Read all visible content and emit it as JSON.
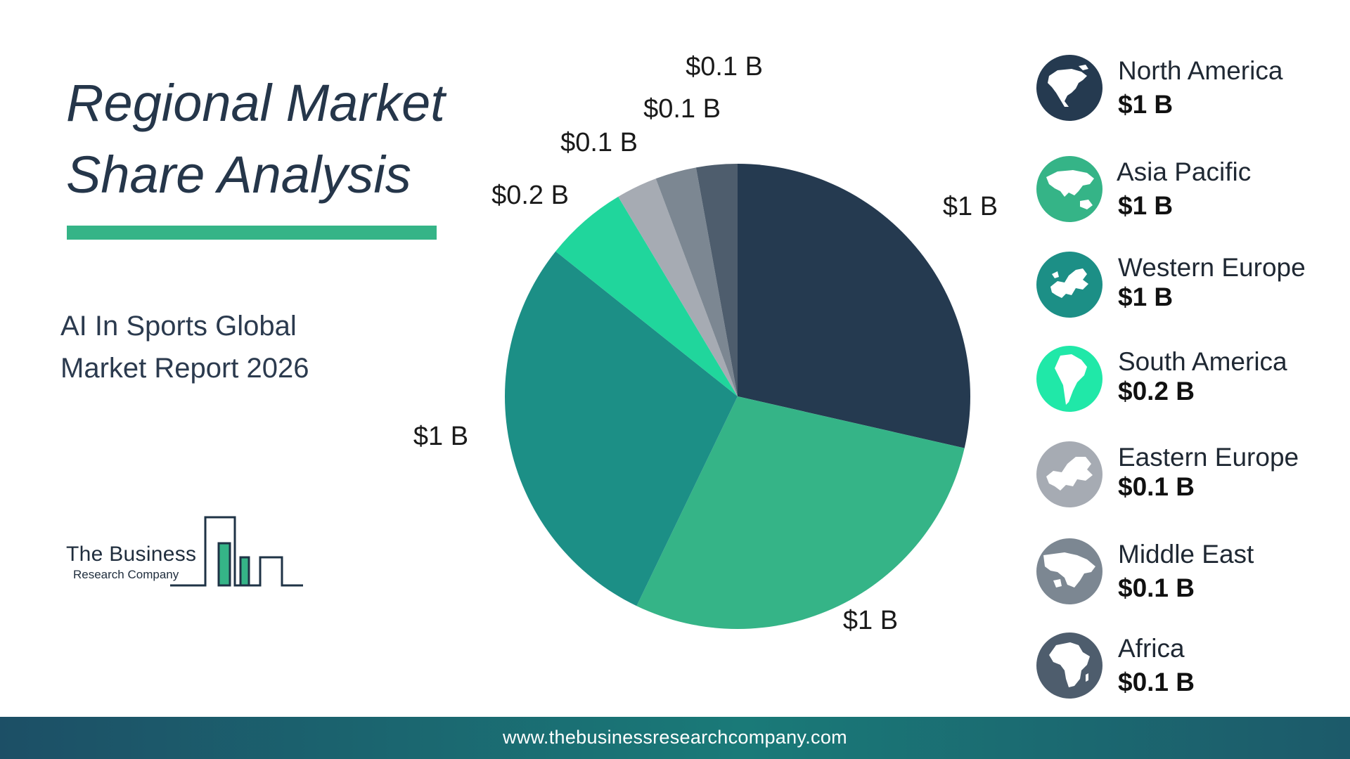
{
  "header": {
    "title_line1": "Regional Market",
    "title_line2": "Share Analysis",
    "subtitle_line1": "AI In Sports Global",
    "subtitle_line2": "Market Report 2026"
  },
  "logo": {
    "line1": "The Business",
    "line2": "Research Company"
  },
  "footer": {
    "url": "www.thebusinessresearchcompany.com"
  },
  "chart_data": {
    "type": "pie",
    "title": "Regional Market Share Analysis",
    "unit": "$ B",
    "slices": [
      {
        "name": "North America",
        "value": 1,
        "label": "$1 B",
        "color": "#253a50"
      },
      {
        "name": "Asia Pacific",
        "value": 1,
        "label": "$1 B",
        "color": "#35b487"
      },
      {
        "name": "Western Europe",
        "value": 1,
        "label": "$1 B",
        "color": "#1c8f86"
      },
      {
        "name": "South America",
        "value": 0.2,
        "label": "$0.2 B",
        "color": "#20d69c"
      },
      {
        "name": "Eastern Europe",
        "value": 0.1,
        "label": "$0.1 B",
        "color": "#a6abb3"
      },
      {
        "name": "Middle East",
        "value": 0.1,
        "label": "$0.1 B",
        "color": "#7c8792"
      },
      {
        "name": "Africa",
        "value": 0.1,
        "label": "$0.1 B",
        "color": "#4e5d6d"
      }
    ],
    "legend_placement": "right"
  },
  "legend": {
    "items": [
      {
        "name": "North America",
        "value": "$1 B",
        "icon": "globe-north-america-icon",
        "color": "#253a50"
      },
      {
        "name": "Asia Pacific",
        "value": "$1 B",
        "icon": "globe-asia-pacific-icon",
        "color": "#35b487"
      },
      {
        "name": "Western Europe",
        "value": "$1 B",
        "icon": "globe-western-europe-icon",
        "color": "#1c8f86"
      },
      {
        "name": "South America",
        "value": "$0.2 B",
        "icon": "globe-south-america-icon",
        "color": "#20e8a8"
      },
      {
        "name": "Eastern Europe",
        "value": "$0.1 B",
        "icon": "globe-eastern-europe-icon",
        "color": "#a6abb3"
      },
      {
        "name": "Middle East",
        "value": "$0.1 B",
        "icon": "globe-middle-east-icon",
        "color": "#7c8792"
      },
      {
        "name": "Africa",
        "value": "$0.1 B",
        "icon": "globe-africa-icon",
        "color": "#4e5d6d"
      }
    ]
  }
}
